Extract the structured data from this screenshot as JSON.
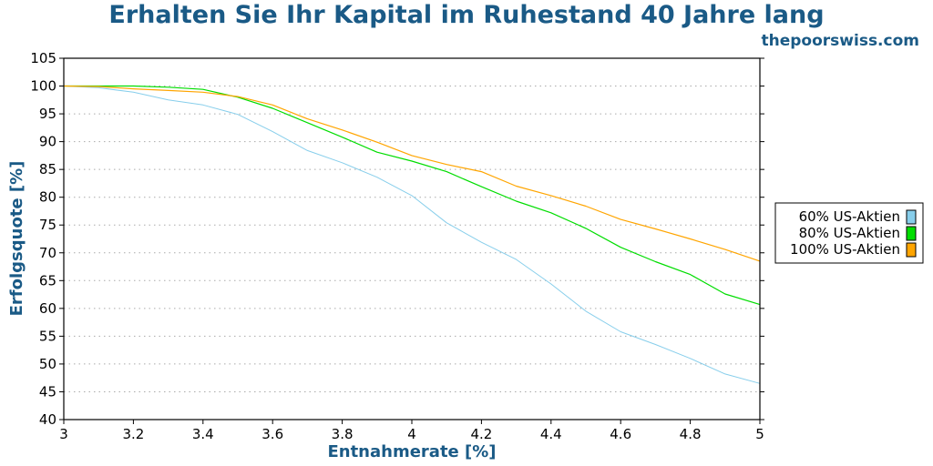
{
  "header": {
    "title": "Erhalten Sie Ihr Kapital im Ruhestand 40 Jahre lang",
    "site": "thepoorswiss.com"
  },
  "chart_data": {
    "type": "line",
    "title": "Erhalten Sie Ihr Kapital im Ruhestand 40 Jahre lang",
    "xlabel": "Entnahmerate [%]",
    "ylabel": "Erfolgsquote [%]",
    "xlim": [
      3,
      5
    ],
    "ylim": [
      40,
      105
    ],
    "xticks": [
      3,
      3.2,
      3.4,
      3.6,
      3.8,
      4,
      4.2,
      4.4,
      4.6,
      4.8,
      5
    ],
    "xtick_labels": [
      "3",
      "3.2",
      "3.4",
      "3.6",
      "3.8",
      "4",
      "4.2",
      "4.4",
      "4.6",
      "4.8",
      "5"
    ],
    "yticks": [
      40,
      45,
      50,
      55,
      60,
      65,
      70,
      75,
      80,
      85,
      90,
      95,
      100,
      105
    ],
    "ytick_labels": [
      "40",
      "45",
      "50",
      "55",
      "60",
      "65",
      "70",
      "75",
      "80",
      "85",
      "90",
      "95",
      "100",
      "105"
    ],
    "grid": "horizontal dotted",
    "legend_position": "right",
    "x": [
      3.0,
      3.1,
      3.2,
      3.3,
      3.4,
      3.5,
      3.6,
      3.7,
      3.8,
      3.9,
      4.0,
      4.1,
      4.2,
      4.3,
      4.4,
      4.5,
      4.6,
      4.7,
      4.8,
      4.9,
      5.0
    ],
    "series": [
      {
        "name": "60% US-Aktien",
        "color": "#87ceeb",
        "values": [
          100,
          99.7,
          98.9,
          97.5,
          96.6,
          94.9,
          91.8,
          88.4,
          86.2,
          83.6,
          80.3,
          75.4,
          71.9,
          68.8,
          64.4,
          59.5,
          55.8,
          53.5,
          51.0,
          48.2,
          46.5
        ]
      },
      {
        "name": "80% US-Aktien",
        "color": "#00dd00",
        "values": [
          100,
          100,
          100,
          99.8,
          99.4,
          98.0,
          96.0,
          93.4,
          90.8,
          88.1,
          86.5,
          84.6,
          81.9,
          79.3,
          77.2,
          74.4,
          71.0,
          68.4,
          66.1,
          62.6,
          60.7
        ]
      },
      {
        "name": "100% US-Aktien",
        "color": "#ffa500",
        "values": [
          100,
          99.9,
          99.5,
          99.2,
          98.9,
          98.1,
          96.6,
          94.1,
          92.1,
          89.9,
          87.5,
          85.9,
          84.6,
          82.0,
          80.3,
          78.4,
          76.0,
          74.3,
          72.5,
          70.6,
          68.5
        ]
      }
    ]
  }
}
